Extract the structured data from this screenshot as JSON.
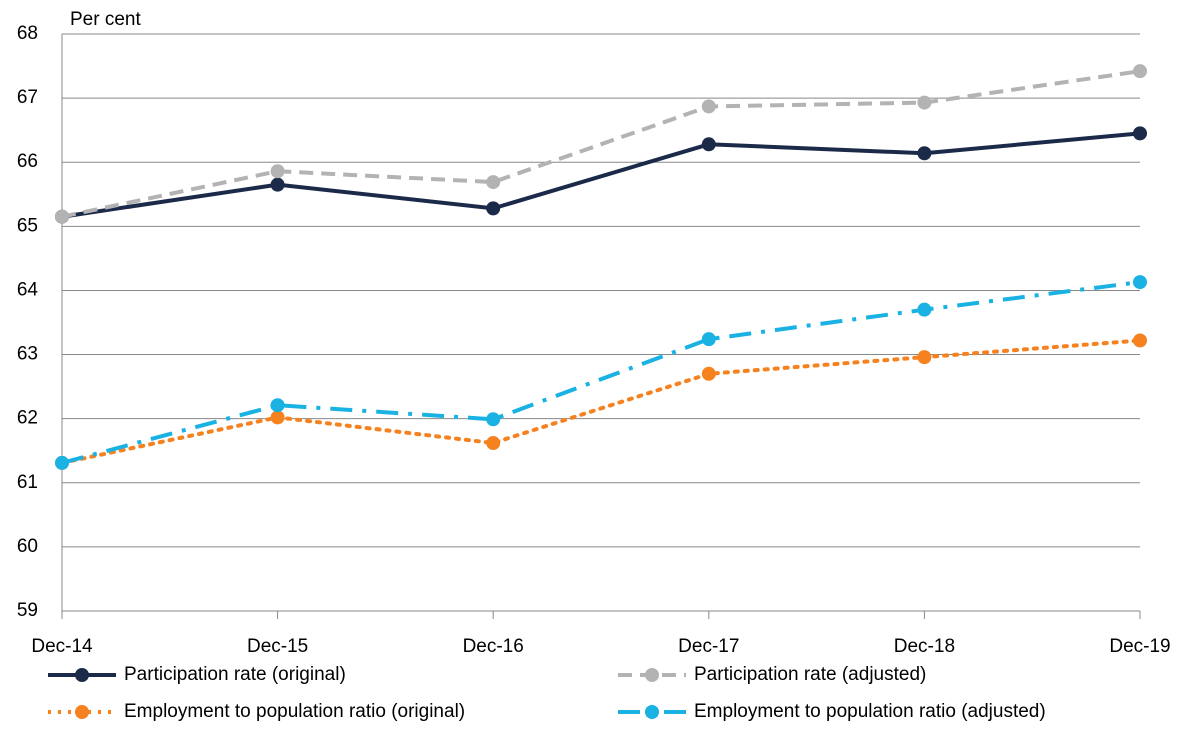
{
  "chart_data": {
    "type": "line",
    "y_label": "Per cent",
    "categories": [
      "Dec-14",
      "Dec-15",
      "Dec-16",
      "Dec-17",
      "Dec-18",
      "Dec-19"
    ],
    "series": [
      {
        "name": "Participation rate (original)",
        "color": "#1c2a4a",
        "dash": "solid",
        "values": [
          65.15,
          65.65,
          65.28,
          66.28,
          66.14,
          66.45
        ]
      },
      {
        "name": "Participation rate (adjusted)",
        "color": "#b3b3b3",
        "dash": "dashed",
        "values": [
          65.15,
          65.86,
          65.69,
          66.87,
          66.93,
          67.42
        ]
      },
      {
        "name": "Employment to population ratio (original)",
        "color": "#f5821f",
        "dash": "dotted",
        "values": [
          61.31,
          62.02,
          61.62,
          62.7,
          62.96,
          63.22
        ]
      },
      {
        "name": "Employment to population ratio (adjusted)",
        "color": "#1ab2e3",
        "dash": "dashdot",
        "values": [
          61.31,
          62.21,
          61.99,
          63.24,
          63.7,
          64.13
        ]
      }
    ],
    "ylim": [
      59,
      68
    ],
    "yticks": [
      59,
      60,
      61,
      62,
      63,
      64,
      65,
      66,
      67,
      68
    ],
    "grid": true
  }
}
